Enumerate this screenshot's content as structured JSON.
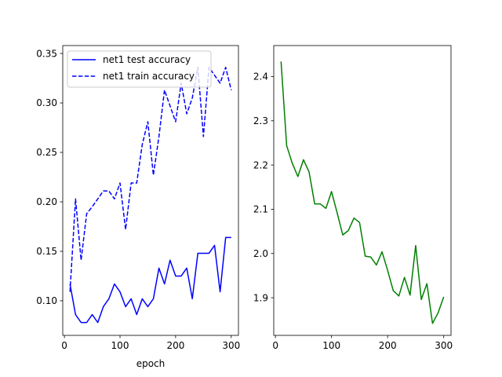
{
  "chart_data": [
    {
      "type": "line",
      "xlabel": "epoch",
      "ylabel": "",
      "xlim": [
        -3,
        313
      ],
      "ylim": [
        0.065,
        0.358
      ],
      "xticks": [
        0,
        100,
        200,
        300
      ],
      "yticks": [
        0.1,
        0.15,
        0.2,
        0.25,
        0.3,
        0.35
      ],
      "ytick_labels": [
        "0.10",
        "0.15",
        "0.20",
        "0.25",
        "0.30",
        "0.35"
      ],
      "legend": "upper-left",
      "grid": false,
      "x": [
        10,
        20,
        30,
        40,
        50,
        60,
        70,
        80,
        90,
        100,
        110,
        120,
        130,
        140,
        150,
        160,
        170,
        180,
        190,
        200,
        210,
        220,
        230,
        240,
        250,
        260,
        270,
        280,
        290,
        300
      ],
      "series": [
        {
          "name": "net1 test accuracy",
          "color": "#0000ff",
          "dash": "solid",
          "values": [
            0.117,
            0.086,
            0.078,
            0.078,
            0.086,
            0.078,
            0.094,
            0.102,
            0.117,
            0.109,
            0.094,
            0.102,
            0.086,
            0.102,
            0.094,
            0.102,
            0.133,
            0.117,
            0.141,
            0.125,
            0.125,
            0.133,
            0.102,
            0.148,
            0.148,
            0.148,
            0.156,
            0.109,
            0.164,
            0.164
          ]
        },
        {
          "name": "net1 train accuracy",
          "color": "#0000ff",
          "dash": "dashed",
          "values": [
            0.109,
            0.203,
            0.141,
            0.188,
            0.195,
            0.203,
            0.211,
            0.211,
            0.203,
            0.219,
            0.172,
            0.219,
            0.219,
            0.258,
            0.281,
            0.227,
            0.266,
            0.313,
            0.297,
            0.281,
            0.32,
            0.289,
            0.305,
            0.336,
            0.266,
            0.336,
            0.328,
            0.32,
            0.336,
            0.313
          ]
        }
      ]
    },
    {
      "type": "line",
      "xlabel": "",
      "ylabel": "",
      "xlim": [
        -3,
        313
      ],
      "ylim": [
        1.815,
        2.47
      ],
      "xticks": [
        0,
        100,
        200,
        300
      ],
      "yticks": [
        1.9,
        2.0,
        2.1,
        2.2,
        2.3,
        2.4
      ],
      "ytick_labels": [
        "1.9",
        "2.0",
        "2.1",
        "2.2",
        "2.3",
        "2.4"
      ],
      "grid": false,
      "x": [
        10,
        20,
        30,
        40,
        50,
        60,
        70,
        80,
        90,
        100,
        110,
        120,
        130,
        140,
        150,
        160,
        170,
        180,
        190,
        200,
        210,
        220,
        230,
        240,
        250,
        260,
        270,
        280,
        290,
        300
      ],
      "series": [
        {
          "color": "#008000",
          "dash": "solid",
          "values": [
            2.434,
            2.244,
            2.204,
            2.174,
            2.212,
            2.184,
            2.112,
            2.112,
            2.102,
            2.14,
            2.092,
            2.042,
            2.052,
            2.08,
            2.07,
            1.994,
            1.992,
            1.974,
            2.004,
            1.962,
            1.916,
            1.904,
            1.946,
            1.906,
            2.018,
            1.896,
            1.932,
            1.842,
            1.866,
            1.902
          ]
        }
      ]
    }
  ]
}
